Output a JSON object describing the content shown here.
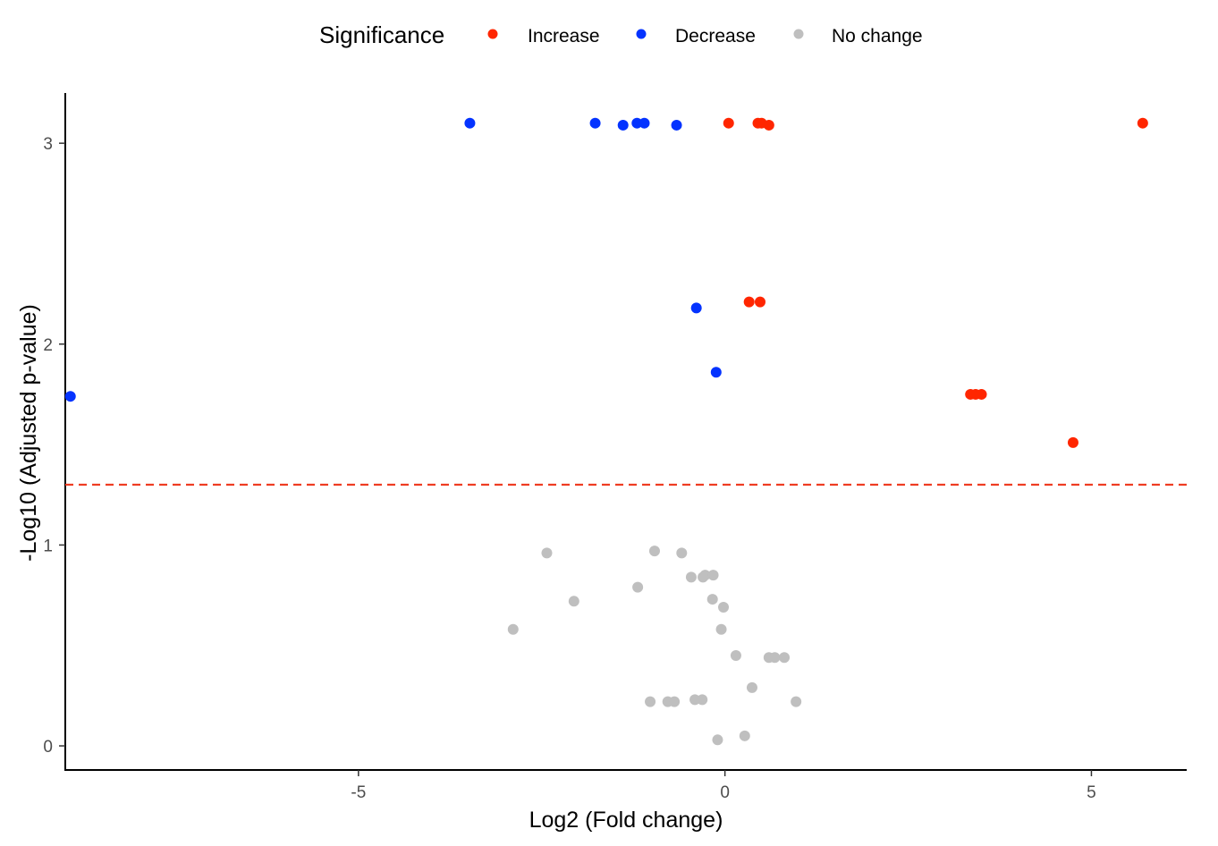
{
  "chart_data": {
    "type": "scatter",
    "title": "",
    "xlabel": "Log2 (Fold change)",
    "ylabel": "-Log10 (Adjusted p-value)",
    "xlim": [
      -9.0,
      6.3
    ],
    "ylim": [
      -0.12,
      3.25
    ],
    "xticks": [
      -5,
      0,
      5
    ],
    "yticks": [
      0,
      1,
      2,
      3
    ],
    "grid": false,
    "threshold": {
      "y": 1.3,
      "color": "#ee3d23",
      "style": "dashed"
    },
    "legend": {
      "title": "Significance",
      "position": "top",
      "entries": [
        {
          "label": "Increase",
          "color": "#ff2600"
        },
        {
          "label": "Decrease",
          "color": "#0433ff"
        },
        {
          "label": "No change",
          "color": "#bfbfbf"
        }
      ]
    },
    "series": [
      {
        "name": "Increase",
        "color": "#ff2600",
        "points": [
          [
            0.05,
            3.1
          ],
          [
            0.45,
            3.1
          ],
          [
            0.5,
            3.1
          ],
          [
            0.6,
            3.09
          ],
          [
            5.7,
            3.1
          ],
          [
            0.33,
            2.21
          ],
          [
            0.48,
            2.21
          ],
          [
            3.35,
            1.75
          ],
          [
            3.42,
            1.75
          ],
          [
            3.5,
            1.75
          ],
          [
            4.75,
            1.51
          ]
        ]
      },
      {
        "name": "Decrease",
        "color": "#0433ff",
        "points": [
          [
            -3.48,
            3.1
          ],
          [
            -1.77,
            3.1
          ],
          [
            -1.39,
            3.09
          ],
          [
            -1.2,
            3.1
          ],
          [
            -1.1,
            3.1
          ],
          [
            -0.66,
            3.09
          ],
          [
            -0.39,
            2.18
          ],
          [
            -0.12,
            1.86
          ],
          [
            -8.93,
            1.74
          ]
        ]
      },
      {
        "name": "No change",
        "color": "#bfbfbf",
        "points": [
          [
            -2.43,
            0.96
          ],
          [
            -0.96,
            0.97
          ],
          [
            -0.59,
            0.96
          ],
          [
            -0.46,
            0.84
          ],
          [
            -0.3,
            0.84
          ],
          [
            -0.27,
            0.85
          ],
          [
            -0.16,
            0.85
          ],
          [
            -1.19,
            0.79
          ],
          [
            -2.06,
            0.72
          ],
          [
            -0.17,
            0.73
          ],
          [
            -0.02,
            0.69
          ],
          [
            -2.89,
            0.58
          ],
          [
            -0.05,
            0.58
          ],
          [
            0.15,
            0.45
          ],
          [
            0.6,
            0.44
          ],
          [
            0.68,
            0.44
          ],
          [
            0.81,
            0.44
          ],
          [
            0.37,
            0.29
          ],
          [
            -1.02,
            0.22
          ],
          [
            -0.78,
            0.22
          ],
          [
            -0.69,
            0.22
          ],
          [
            -0.41,
            0.23
          ],
          [
            -0.31,
            0.23
          ],
          [
            0.97,
            0.22
          ],
          [
            -0.1,
            0.03
          ],
          [
            0.27,
            0.05
          ]
        ]
      }
    ]
  }
}
